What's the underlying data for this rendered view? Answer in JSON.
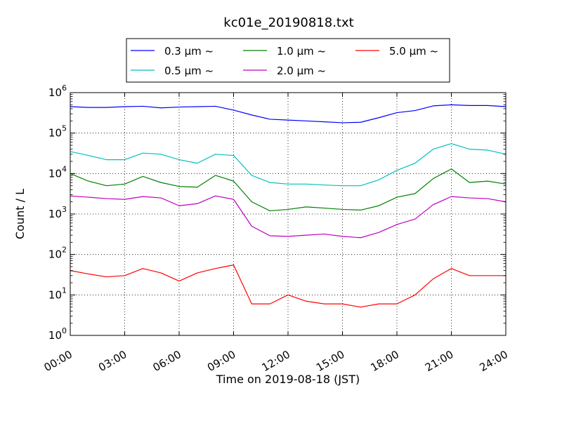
{
  "chart_data": {
    "type": "line",
    "title": "kc01e_20190818.txt",
    "xlabel": "Time on 2019-08-18 (JST)",
    "ylabel": "Count / L",
    "y_scale": "log",
    "xlim": [
      0,
      24
    ],
    "ylim": [
      1,
      1000000
    ],
    "x_tick_labels": [
      "00:00",
      "03:00",
      "06:00",
      "09:00",
      "12:00",
      "15:00",
      "18:00",
      "21:00",
      "24:00"
    ],
    "y_tick_labels": [
      {
        "base": "10",
        "exp": "0"
      },
      {
        "base": "10",
        "exp": "1"
      },
      {
        "base": "10",
        "exp": "2"
      },
      {
        "base": "10",
        "exp": "3"
      },
      {
        "base": "10",
        "exp": "4"
      },
      {
        "base": "10",
        "exp": "5"
      },
      {
        "base": "10",
        "exp": "6"
      }
    ],
    "grid": true,
    "legend_position": "top-center",
    "x": [
      0,
      1,
      2,
      3,
      4,
      5,
      6,
      7,
      8,
      9,
      10,
      11,
      12,
      13,
      14,
      15,
      16,
      17,
      18,
      19,
      20,
      21,
      22,
      23,
      24
    ],
    "series": [
      {
        "name": "0.3 μm ~",
        "color": "#0000ff",
        "values": [
          450000,
          430000,
          430000,
          450000,
          460000,
          420000,
          440000,
          450000,
          460000,
          370000,
          280000,
          220000,
          210000,
          200000,
          190000,
          180000,
          185000,
          240000,
          320000,
          360000,
          470000,
          500000,
          480000,
          480000,
          450000
        ]
      },
      {
        "name": "0.5 μm ~",
        "color": "#00bfbf",
        "values": [
          35000,
          28000,
          22000,
          22000,
          32000,
          30000,
          22000,
          18000,
          30000,
          28000,
          9000,
          6000,
          5500,
          5500,
          5200,
          5000,
          5000,
          7000,
          12000,
          18000,
          40000,
          55000,
          40000,
          38000,
          30000
        ]
      },
      {
        "name": "1.0 μm ~",
        "color": "#008000",
        "values": [
          10000,
          6500,
          5000,
          5500,
          8500,
          6000,
          4800,
          4600,
          9000,
          6500,
          2000,
          1200,
          1300,
          1500,
          1400,
          1300,
          1250,
          1600,
          2600,
          3200,
          7500,
          13000,
          6000,
          6500,
          5500
        ]
      },
      {
        "name": "2.0 μm ~",
        "color": "#bf00bf",
        "values": [
          2800,
          2600,
          2400,
          2300,
          2700,
          2500,
          1600,
          1800,
          2800,
          2300,
          500,
          290,
          280,
          300,
          320,
          280,
          260,
          350,
          550,
          750,
          1700,
          2700,
          2500,
          2400,
          2000
        ]
      },
      {
        "name": "5.0 μm ~",
        "color": "#ff0000",
        "values": [
          40,
          33,
          28,
          30,
          45,
          35,
          22,
          35,
          45,
          55,
          6,
          6,
          10,
          7,
          6,
          6,
          5,
          6,
          6,
          10,
          25,
          45,
          30,
          30,
          30
        ]
      }
    ]
  }
}
